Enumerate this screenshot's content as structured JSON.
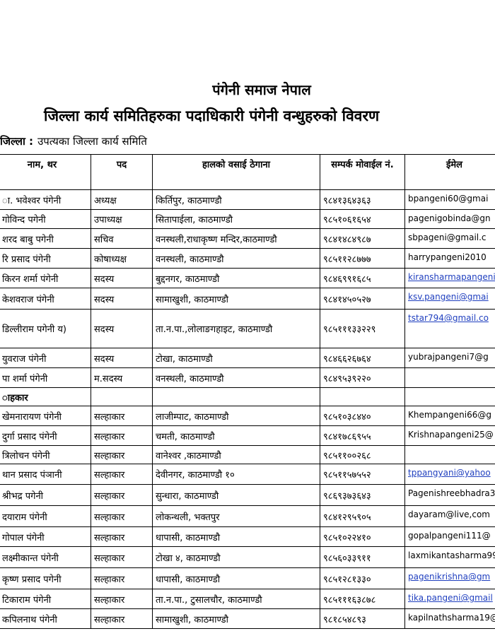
{
  "header": {
    "title": "पंगेनी समाज नेपाल",
    "subtitle": "जिल्ला कार्य समितिहरुका पदाधिकारी पंगेनी वन्धुहरुको विवरण"
  },
  "district": {
    "label": "जिल्ला :",
    "value": "उपत्यका जिल्ला कार्य समिति"
  },
  "table": {
    "columns": [
      "नाम, थर",
      "पद",
      "हालको वसाई ठेगाना",
      "सम्पर्क मोवाईल नं.",
      "ईमेल"
    ],
    "rows": [
      [
        "ा. भवेश्वर पंगेनी",
        "अध्यक्ष",
        "किर्तिपुर, काठमाण्डौ",
        "९८४१३६४३६३",
        "bpangeni60@gmai"
      ],
      [
        "गोविन्द पगेनी",
        "उपाध्यक्ष",
        "सितापाईला, काठमाण्डौ",
        "९८५१०६१६५४",
        "pagenigobinda@gn"
      ],
      [
        "शरद बाबु पगेनी",
        "सचिव",
        "वनस्थली,राधाकृष्ण मन्दिर,काठमाण्डौ",
        "९८४१४८४९८७",
        "sbpageni@gmail.c"
      ],
      [
        "रि प्रसाद पंगेनी",
        "कोषाध्यक्ष",
        "वनस्थली, काठमाण्डौ",
        "९८५११२८७७७",
        "harrypangeni2010"
      ],
      [
        "किरन शर्मा पंगेनी",
        "सदस्य",
        "बुद्दनगर, काठमाण्डौ",
        "९८४६९९१६८५",
        "kiransharmapangeni"
      ],
      [
        "केशवराज पंगेनी",
        "सदस्य",
        "सामाखुशी, काठमाण्डौ",
        "९८४१४५०५२७",
        "ksv.pangeni@gmai"
      ],
      [
        "डिल्लीराम पगेनी य)",
        "सदस्य",
        "ता.न.पा.,लोलाङगहाइट, काठमाण्डौ",
        "९८५१११३३२२९",
        "tstar794@gmail.co"
      ],
      [
        "युवराज पंगेनी",
        "सदस्य",
        "टोखा, काठमाण्डौ",
        "९८४६६२६७६४",
        "yubrajpangeni7@g"
      ],
      [
        "पा शर्मा पंगेनी",
        "म.सदस्य",
        "वनस्थली, काठमाण्डौ",
        "९८४९५३९२२०",
        null
      ]
    ],
    "section": "ाहकार",
    "advisor_rows": [
      [
        "खेमनारायण पंगेनी",
        "सल्हाकार",
        "लाजीम्पाट, काठमाण्डौ",
        "९८५१०३८४४०",
        "Khempangeni66@g"
      ],
      [
        "दुर्गा प्रसाद पंगेनी",
        "सल्हाकार",
        "चमती, काठमाण्डौ",
        "९८४१७८६९५५",
        "Krishnapangeni25@"
      ],
      [
        "त्रिलोचन पंगेनी",
        "सल्हाकार",
        "वानेश्वर ,काठमाण्डौ",
        "९८५११००२६८",
        null
      ],
      [
        "थान प्रसाद पंञानी",
        "सल्हाकार",
        "देवीनगर, काठमाण्डौ १०",
        "९८५११५७५५२",
        "tppangyani@yahoo"
      ],
      [
        "श्रीभद्र पगेनी",
        "सल्हाकार",
        "सुन्धारा, काठमाण्डौ",
        "९८६९३७३६४३",
        "Pagenishreebhadra3"
      ],
      [
        "दयाराम पंगेनी",
        "सल्हाकार",
        "लोकन्थली, भक्तपुर",
        "९८४१२९५९०५",
        "dayaram@live,com"
      ],
      [
        "गोपाल पंगेनी",
        "सल्हाकार",
        "धापासी, काठमाण्डौ",
        "९८५१०२२४१०",
        "gopalpangeni111@"
      ],
      [
        "लक्ष्मीकान्त पंगेनी",
        "सल्हाकार",
        "टोखा ४, काठमाण्डौ",
        "९८५६०३३९११",
        "laxmikantasharma99"
      ],
      [
        "कृष्ण प्रसाद पगेनी",
        "सल्हाकार",
        "धापासी, काठमाण्डौ",
        "९८५१२८१३३०",
        "pagenikrishna@gm"
      ],
      [
        "टिकाराम पंगेनी",
        "सल्हाकार",
        "ता.न.पा., टुसालचौर, काठमाण्डौ",
        "९८५१११६३८७८",
        "tika.pangeni@gmail"
      ],
      [
        "कपिलनाथ पंगेनी",
        "सल्हाकार",
        "सामाखुशी, काठमाण्डौ",
        "९८१८५४८९३",
        "kapilnathsharma19@"
      ]
    ]
  }
}
